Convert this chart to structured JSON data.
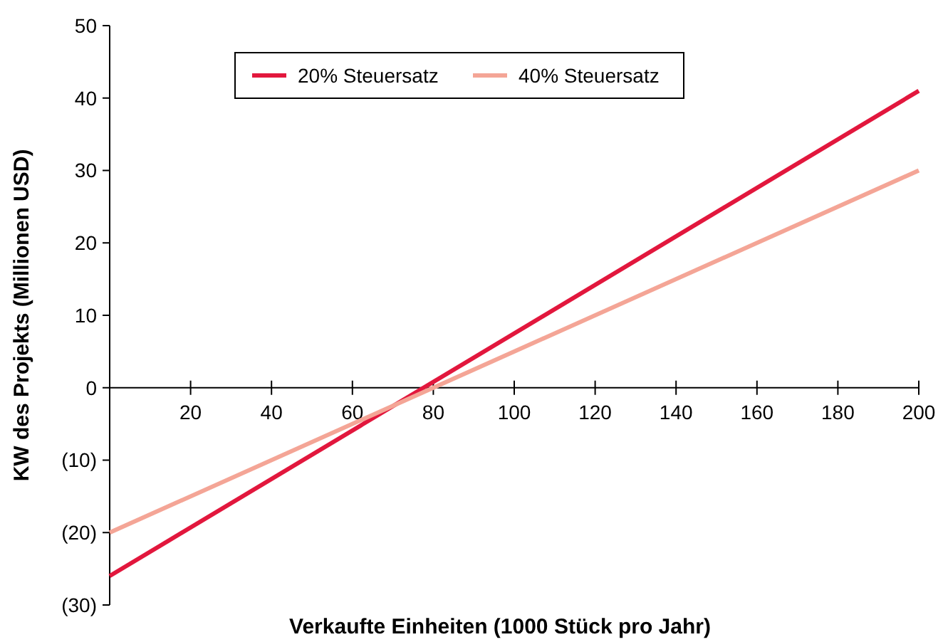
{
  "chart_data": {
    "type": "line",
    "xlabel": "Verkaufte Einheiten (1000 Stück pro Jahr)",
    "ylabel": "KW des Projekts (Millionen USD)",
    "x": [
      0,
      200
    ],
    "series": [
      {
        "name": "20% Steuersatz",
        "color": "#e2173d",
        "values": [
          -26,
          41
        ]
      },
      {
        "name": "40% Steuersatz",
        "color": "#f4a596",
        "values": [
          -20,
          30
        ]
      }
    ],
    "xlim": [
      0,
      200
    ],
    "xticks": [
      20,
      40,
      60,
      80,
      100,
      120,
      140,
      160,
      180,
      200
    ],
    "ylim": [
      -30,
      50
    ],
    "yticks": [
      {
        "value": -30,
        "label": "(30)"
      },
      {
        "value": -20,
        "label": "(20)"
      },
      {
        "value": -10,
        "label": "(10)"
      },
      0,
      10,
      20,
      30,
      40,
      50
    ],
    "legend": "top",
    "grid": false,
    "marker": "none",
    "line_style": "solid"
  }
}
